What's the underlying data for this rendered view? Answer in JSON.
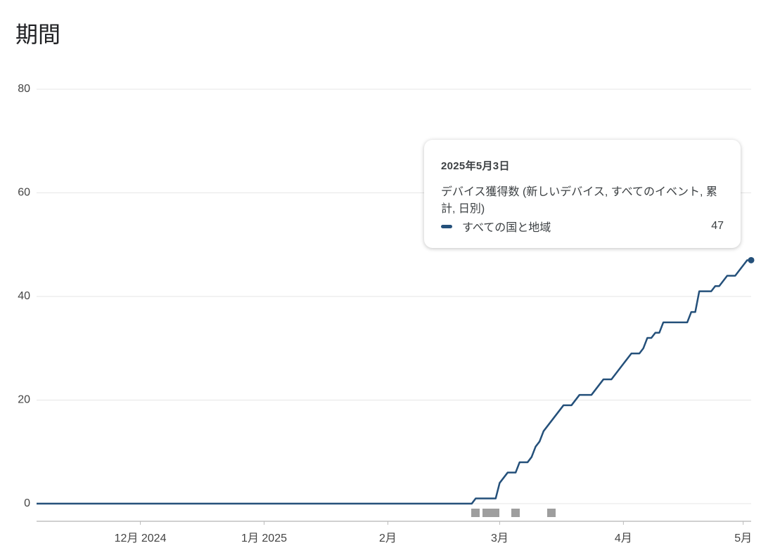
{
  "title": "期間",
  "chart_data": {
    "type": "line",
    "x": [
      "2024-11-05",
      "2025-02-22",
      "2025-02-23",
      "2025-02-28",
      "2025-03-01",
      "2025-03-02",
      "2025-03-03",
      "2025-03-05",
      "2025-03-06",
      "2025-03-08",
      "2025-03-09",
      "2025-03-10",
      "2025-03-11",
      "2025-03-12",
      "2025-03-17",
      "2025-03-19",
      "2025-03-21",
      "2025-03-24",
      "2025-03-27",
      "2025-03-29",
      "2025-04-03",
      "2025-04-05",
      "2025-04-06",
      "2025-04-07",
      "2025-04-08",
      "2025-04-09",
      "2025-04-10",
      "2025-04-11",
      "2025-04-17",
      "2025-04-18",
      "2025-04-19",
      "2025-04-20",
      "2025-04-23",
      "2025-04-24",
      "2025-04-25",
      "2025-04-27",
      "2025-04-29",
      "2025-05-01",
      "2025-05-02",
      "2025-05-03"
    ],
    "series": [
      {
        "name": "すべての国と地域",
        "color": "#24507a",
        "values": [
          0,
          0,
          1,
          1,
          4,
          5,
          6,
          6,
          8,
          8,
          9,
          11,
          12,
          14,
          19,
          19,
          21,
          21,
          24,
          24,
          29,
          29,
          30,
          32,
          32,
          33,
          33,
          35,
          35,
          37,
          37,
          41,
          41,
          42,
          42,
          44,
          44,
          46,
          47,
          47
        ]
      }
    ],
    "xlim": [
      "2024-11-05",
      "2025-05-03"
    ],
    "xticks": [
      {
        "value": "2024-12-01",
        "label": "12月 2024"
      },
      {
        "value": "2025-01-01",
        "label": "1月 2025"
      },
      {
        "value": "2025-02-01",
        "label": "2月"
      },
      {
        "value": "2025-03-01",
        "label": "3月"
      },
      {
        "value": "2025-04-01",
        "label": "4月"
      },
      {
        "value": "2025-05-01",
        "label": "5月"
      }
    ],
    "ylim": [
      -3.4,
      80
    ],
    "yticks": [
      0,
      20,
      40,
      60,
      80
    ],
    "grid": true,
    "tooltip": {
      "date": "2025年5月3日",
      "metric": "デバイス獲得数 (新しいデバイス, すべてのイベント, 累計, 日別)"
    }
  }
}
